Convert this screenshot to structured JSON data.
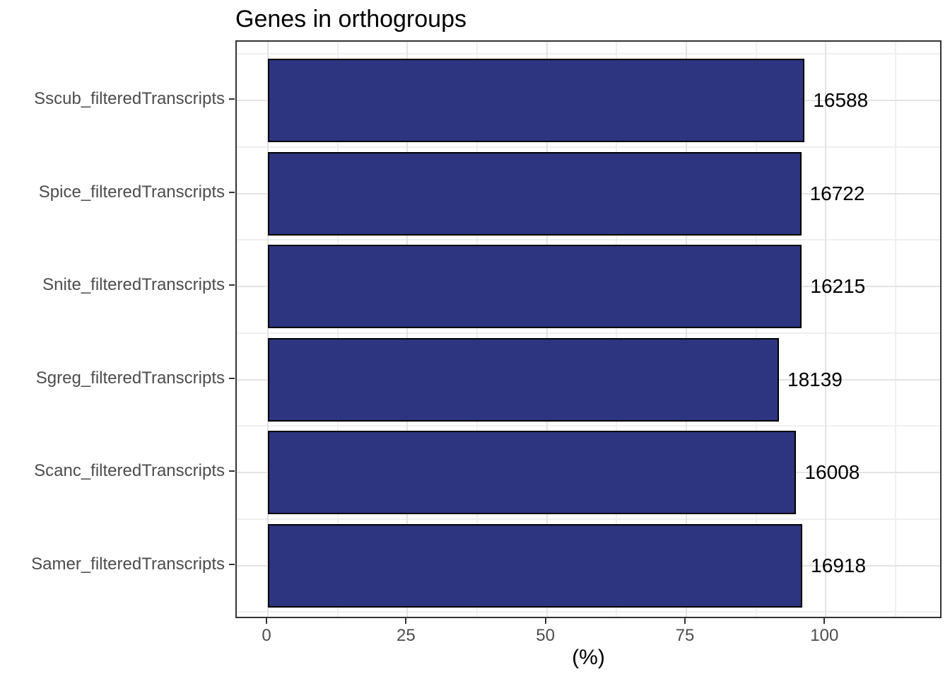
{
  "colors": {
    "bar_fill": "#2D3580",
    "bar_stroke": "#000000",
    "grid_major": "#E3E3E3",
    "grid_minor": "#EFEFEF",
    "panel_border": "#333333",
    "axis_text": "#4D4D4D",
    "title_color": "#000000",
    "value_label_color": "#000000",
    "background": "#FFFFFF"
  },
  "chart_data": {
    "type": "bar",
    "orientation": "horizontal",
    "title": "Genes in orthogroups",
    "xlabel": "(%)",
    "ylabel": "",
    "categories": [
      "Sscub_filteredTranscripts",
      "Spice_filteredTranscripts",
      "Snite_filteredTranscripts",
      "Sgreg_filteredTranscripts",
      "Scanc_filteredTranscripts",
      "Samer_filteredTranscripts"
    ],
    "values_pct": [
      96.2,
      95.6,
      95.7,
      91.6,
      94.7,
      95.8
    ],
    "bar_labels": [
      "16588",
      "16722",
      "16215",
      "18139",
      "16008",
      "16918"
    ],
    "x_ticks": [
      0,
      25,
      50,
      75,
      100
    ],
    "x_tick_labels": [
      "0",
      "25",
      "50",
      "75",
      "100"
    ],
    "x_minor_ticks": [
      12.5,
      37.5,
      62.5,
      87.5,
      112.5
    ],
    "xlim": [
      -5.6,
      121
    ],
    "grid": true,
    "legend": false
  }
}
